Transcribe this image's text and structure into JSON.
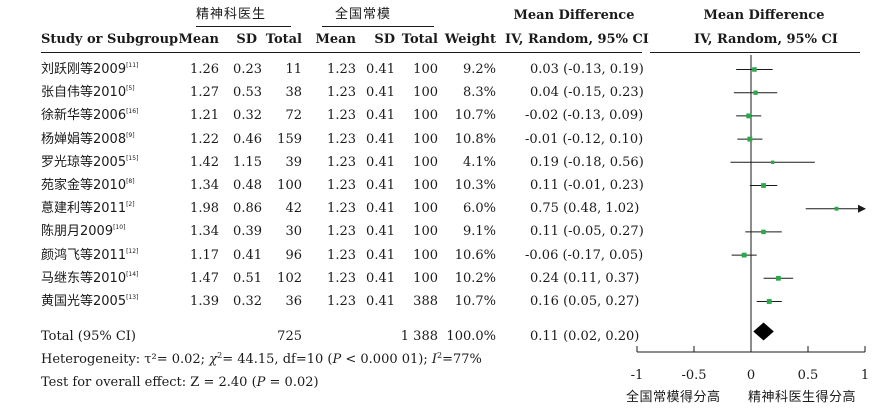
{
  "header": {
    "group1": "精神科医生",
    "group2": "全国常模",
    "md_title": "Mean Difference",
    "md_subtitle": "IV, Random, 95% CI",
    "plot_title": "Mean Difference",
    "plot_subtitle": "IV, Random, 95% CI",
    "col_study": "Study or Subgroup",
    "col_mean1": "Mean",
    "col_sd1": "SD",
    "col_total1": "Total",
    "col_mean2": "Mean",
    "col_sd2": "SD",
    "col_total2": "Total",
    "col_weight": "Weight"
  },
  "studies": [
    {
      "name": "刘跃刚等2009",
      "ref": "[11]",
      "mean1": "1.26",
      "sd1": "0.23",
      "n1": "11",
      "mean2": "1.23",
      "sd2": "0.41",
      "n2": "100",
      "weight": "9.2%",
      "ci": "0.03 (-0.13, 0.19)"
    },
    {
      "name": "张自伟等2010",
      "ref": "[5]",
      "mean1": "1.27",
      "sd1": "0.53",
      "n1": "38",
      "mean2": "1.23",
      "sd2": "0.41",
      "n2": "100",
      "weight": "8.3%",
      "ci": "0.04 (-0.15, 0.23)"
    },
    {
      "name": "徐新华等2006",
      "ref": "[16]",
      "mean1": "1.21",
      "sd1": "0.32",
      "n1": "72",
      "mean2": "1.23",
      "sd2": "0.41",
      "n2": "100",
      "weight": "10.7%",
      "ci": "-0.02 (-0.13, 0.09)"
    },
    {
      "name": "杨婵娟等2008",
      "ref": "[9]",
      "mean1": "1.22",
      "sd1": "0.46",
      "n1": "159",
      "mean2": "1.23",
      "sd2": "0.41",
      "n2": "100",
      "weight": "10.8%",
      "ci": "-0.01 (-0.12, 0.10)"
    },
    {
      "name": "罗光琼等2005",
      "ref": "[15]",
      "mean1": "1.42",
      "sd1": "1.15",
      "n1": "39",
      "mean2": "1.23",
      "sd2": "0.41",
      "n2": "100",
      "weight": "4.1%",
      "ci": "0.19 (-0.18, 0.56)"
    },
    {
      "name": "苑家金等2010",
      "ref": "[8]",
      "mean1": "1.34",
      "sd1": "0.48",
      "n1": "100",
      "mean2": "1.23",
      "sd2": "0.41",
      "n2": "100",
      "weight": "10.3%",
      "ci": "0.11 (-0.01, 0.23)"
    },
    {
      "name": "蒠建利等2011",
      "ref": "[2]",
      "mean1": "1.98",
      "sd1": "0.86",
      "n1": "42",
      "mean2": "1.23",
      "sd2": "0.41",
      "n2": "100",
      "weight": "6.0%",
      "ci": "0.75 (0.48, 1.02)"
    },
    {
      "name": "陈朋月2009",
      "ref": "[10]",
      "mean1": "1.34",
      "sd1": "0.39",
      "n1": "30",
      "mean2": "1.23",
      "sd2": "0.41",
      "n2": "100",
      "weight": "9.1%",
      "ci": "0.11 (-0.05, 0.27)"
    },
    {
      "name": "颜鸿飞等2011",
      "ref": "[12]",
      "mean1": "1.17",
      "sd1": "0.41",
      "n1": "96",
      "mean2": "1.23",
      "sd2": "0.41",
      "n2": "100",
      "weight": "10.6%",
      "ci": "-0.06 (-0.17, 0.05)"
    },
    {
      "name": "马继东等2010",
      "ref": "[14]",
      "mean1": "1.47",
      "sd1": "0.51",
      "n1": "102",
      "mean2": "1.23",
      "sd2": "0.41",
      "n2": "100",
      "weight": "10.2%",
      "ci": "0.24 (0.11, 0.37)"
    },
    {
      "name": "黄国光等2005",
      "ref": "[13]",
      "mean1": "1.39",
      "sd1": "0.32",
      "n1": "36",
      "mean2": "1.23",
      "sd2": "0.41",
      "n2": "388",
      "weight": "10.7%",
      "ci": "0.16 (0.05, 0.27)"
    }
  ],
  "total": {
    "label": "Total (95% CI)",
    "n1": "725",
    "n2": "1 388",
    "weight": "100.0%",
    "ci": "0.11 (0.02, 0.20)"
  },
  "footer": {
    "heterogeneity": "Heterogeneity: τ²= 0.02;  χ²= 44.15, df=10 (P < 0.000 01); I²=77%",
    "overall": "Test for overall effect: Z = 2.40 (P = 0.02)"
  },
  "axis_labels": {
    "left": "全国常模得分高",
    "right": "精神科医生得分高"
  },
  "colors": {
    "marker": "#2aa84a",
    "line": "#1a1a1a",
    "diamond": "#000000"
  },
  "chart_data": {
    "type": "forest",
    "xlim": [
      -1,
      1
    ],
    "ticks": [
      "-1",
      "-0.5",
      "0",
      "0.5",
      "1"
    ],
    "tick_values": [
      -1,
      -0.5,
      0,
      0.5,
      1
    ],
    "studies": [
      {
        "label": "刘跃刚等2009",
        "md": 0.03,
        "lo": -0.13,
        "hi": 0.19,
        "weight": 9.2
      },
      {
        "label": "张自伟等2010",
        "md": 0.04,
        "lo": -0.15,
        "hi": 0.23,
        "weight": 8.3
      },
      {
        "label": "徐新华等2006",
        "md": -0.02,
        "lo": -0.13,
        "hi": 0.09,
        "weight": 10.7
      },
      {
        "label": "杨婵娟等2008",
        "md": -0.01,
        "lo": -0.12,
        "hi": 0.1,
        "weight": 10.8
      },
      {
        "label": "罗光琼等2005",
        "md": 0.19,
        "lo": -0.18,
        "hi": 0.56,
        "weight": 4.1
      },
      {
        "label": "苑家金等2010",
        "md": 0.11,
        "lo": -0.01,
        "hi": 0.23,
        "weight": 10.3
      },
      {
        "label": "蒠建利等2011",
        "md": 0.75,
        "lo": 0.48,
        "hi": 1.02,
        "weight": 6.0
      },
      {
        "label": "陈朋月2009",
        "md": 0.11,
        "lo": -0.05,
        "hi": 0.27,
        "weight": 9.1
      },
      {
        "label": "颜鸿飞等2011",
        "md": -0.06,
        "lo": -0.17,
        "hi": 0.05,
        "weight": 10.6
      },
      {
        "label": "马继东等2010",
        "md": 0.24,
        "lo": 0.11,
        "hi": 0.37,
        "weight": 10.2
      },
      {
        "label": "黄国光等2005",
        "md": 0.16,
        "lo": 0.05,
        "hi": 0.27,
        "weight": 10.7
      }
    ],
    "pooled": {
      "md": 0.11,
      "lo": 0.02,
      "hi": 0.2
    }
  }
}
